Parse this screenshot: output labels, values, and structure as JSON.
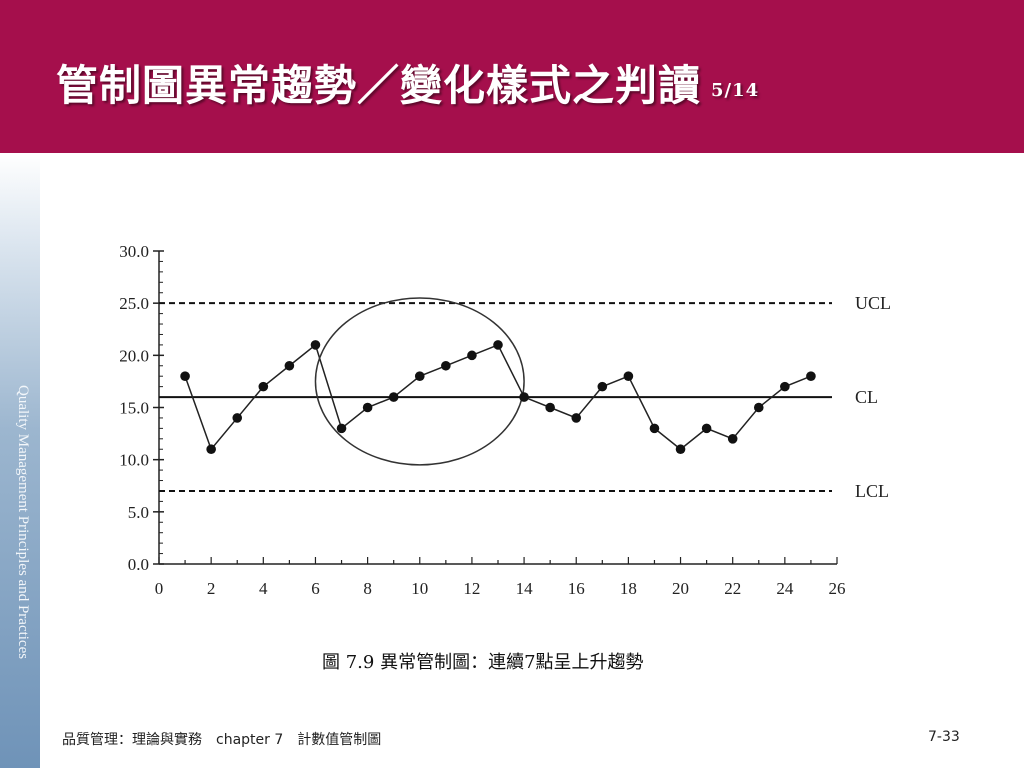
{
  "slide": {
    "title": "管制圖異常趨勢／變化樣式之判讀",
    "page": "5/14",
    "sidebar_text": "Quality Management Principles and Practices",
    "caption": "圖 7.9  異常管制圖：連續7點呈上升趨勢",
    "footer_left": "品質管理：理論與實務　chapter 7　計數值管制圖",
    "footer_right": "7-33"
  },
  "colors": {
    "header_bg": "#a50f4c",
    "title_text": "#ffffff"
  },
  "chart_data": {
    "type": "line",
    "x": [
      1,
      2,
      3,
      4,
      5,
      6,
      7,
      8,
      9,
      10,
      11,
      12,
      13,
      14,
      15,
      16,
      17,
      18,
      19,
      20,
      21,
      22,
      23,
      24,
      25
    ],
    "values": [
      18,
      11,
      14,
      17,
      19,
      21,
      13,
      15,
      16,
      18,
      19,
      20,
      21,
      16,
      15,
      14,
      17,
      18,
      13,
      11,
      13,
      12,
      15,
      17,
      18
    ],
    "xlim": [
      0,
      26
    ],
    "ylim": [
      0,
      30
    ],
    "x_ticks": [
      "0",
      "2",
      "4",
      "6",
      "8",
      "10",
      "12",
      "14",
      "16",
      "18",
      "20",
      "22",
      "24",
      "26"
    ],
    "y_ticks": [
      "0.0",
      "5.0",
      "10.0",
      "15.0",
      "20.0",
      "25.0",
      "30.0"
    ],
    "control_lines": [
      {
        "name": "UCL",
        "value": 25,
        "style": "dashed"
      },
      {
        "name": "CL",
        "value": 16,
        "style": "solid"
      },
      {
        "name": "LCL",
        "value": 7,
        "style": "dashed"
      }
    ],
    "highlight": {
      "shape": "ellipse",
      "x_range": [
        6,
        14
      ],
      "y_range": [
        9.5,
        25.5
      ]
    },
    "grid": false
  }
}
